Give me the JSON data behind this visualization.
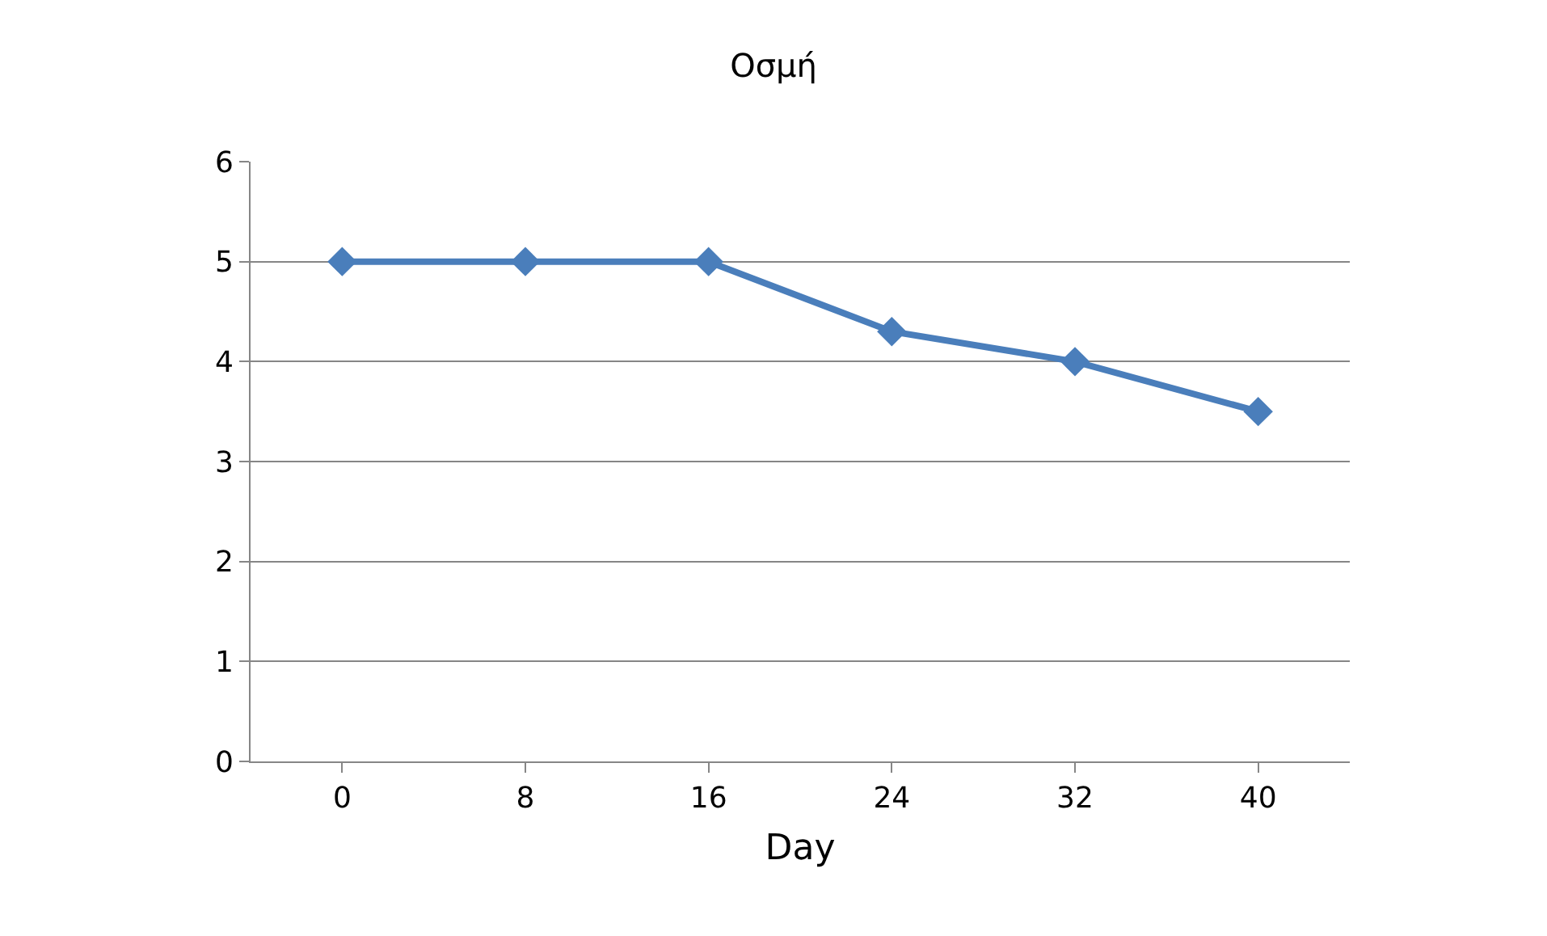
{
  "chart_data": {
    "type": "line",
    "title": "Οσμή",
    "xlabel": "Day",
    "categories": [
      "0",
      "8",
      "16",
      "24",
      "32",
      "40"
    ],
    "series": [
      {
        "color": "#4a7ebb",
        "values": [
          5,
          5,
          5,
          4.3,
          4,
          3.5
        ]
      }
    ],
    "ylim": [
      0,
      6
    ],
    "yticks": [
      0,
      1,
      2,
      3,
      4,
      5,
      6
    ],
    "grid": "y",
    "marker": "diamond",
    "line_style": "solid"
  }
}
